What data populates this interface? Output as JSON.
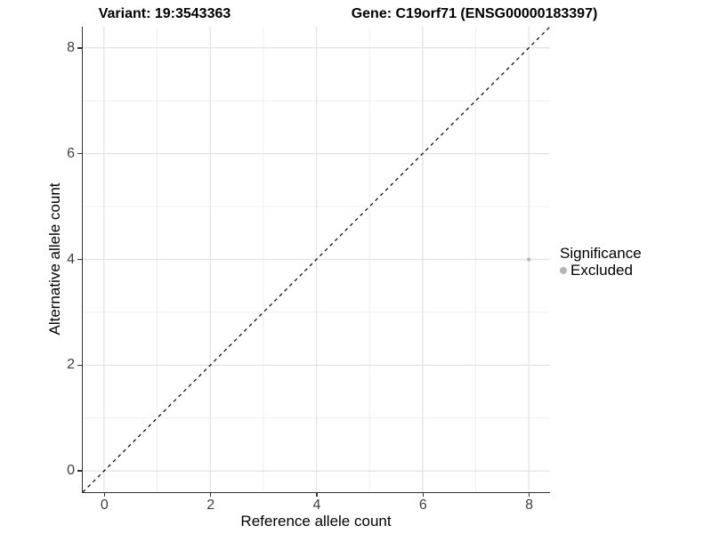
{
  "titles": {
    "variant": "Variant: 19:3543363",
    "gene": "Gene: C19orf71 (ENSG00000183397)"
  },
  "chart_data": {
    "type": "scatter",
    "xlabel": "Reference allele count",
    "ylabel": "Alternative allele count",
    "xlim": [
      -0.4,
      8.4
    ],
    "ylim": [
      -0.4,
      8.4
    ],
    "x_ticks": [
      0,
      2,
      4,
      6,
      8
    ],
    "y_ticks": [
      0,
      2,
      4,
      6,
      8
    ],
    "x_minor": [
      1,
      3,
      5,
      7
    ],
    "y_minor": [
      1,
      3,
      5,
      7
    ],
    "grid": true,
    "grid_major_color": "#e2e2e2",
    "grid_minor_color": "#efefef",
    "reference_line": {
      "type": "identity",
      "equation": "y = x",
      "style": "dashed",
      "color": "#000000"
    },
    "series": [
      {
        "name": "Excluded",
        "color": "#b4b4b4",
        "point_radius": 2,
        "points": [
          {
            "x": 8,
            "y": 4
          }
        ]
      }
    ],
    "legend": {
      "title": "Significance",
      "position": "right",
      "items": [
        {
          "label": "Excluded",
          "color": "#b4b4b4"
        }
      ]
    }
  }
}
